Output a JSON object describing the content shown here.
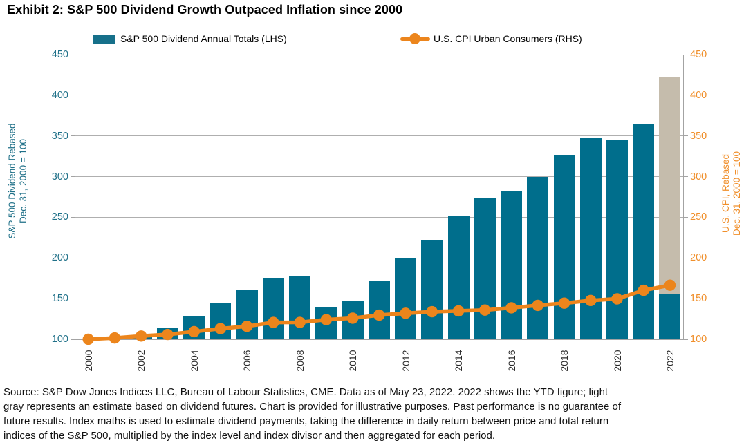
{
  "title": "Exhibit 2: S&P 500 Dividend Growth Outpaced Inflation since 2000",
  "legend": {
    "bars_label": "S&P 500 Dividend Annual Totals (LHS)",
    "line_label": "U.S. CPI Urban Consumers (RHS)"
  },
  "left_axis_title": "S&P 500 Dividend Rebased\nDec. 31, 2000 = 100",
  "right_axis_title": "U.S. CPI, Rebased\nDec. 31, 2000 = 100",
  "footer": "Source: S&P Dow Jones Indices LLC, Bureau of Labour Statistics, CME. Data as of May 23, 2022. 2022 shows the YTD figure; light\ngray represents an estimate based on dividend futures. Chart is provided for illustrative purposes. Past performance is no guarantee of\nfuture results. Index maths is used to estimate dividend payments, taking the difference in daily return between price and total return\nindices of the S&P 500, multiplied by the index level and index divisor and then aggregated for each period.",
  "colors": {
    "bar_teal": "#006E8C",
    "bar_estimate_gray": "#C5BCAC",
    "line_orange": "#EC851C",
    "left_axis_text": "#1F7088",
    "right_axis_text": "#F08F2B",
    "gridline": "#AFAFAF"
  },
  "chart_data": {
    "type": "bar+line",
    "title": "Exhibit 2: S&P 500 Dividend Growth Outpaced Inflation since 2000",
    "x_years": [
      2000,
      2001,
      2002,
      2003,
      2004,
      2005,
      2006,
      2007,
      2008,
      2009,
      2010,
      2011,
      2012,
      2013,
      2014,
      2015,
      2016,
      2017,
      2018,
      2019,
      2020,
      2021,
      2022
    ],
    "x_axis_labeled_years": [
      2000,
      2002,
      2004,
      2006,
      2008,
      2010,
      2012,
      2014,
      2016,
      2018,
      2020,
      2022
    ],
    "y_ticks": [
      100,
      150,
      200,
      250,
      300,
      350,
      400,
      450
    ],
    "left_ylim": [
      100,
      450
    ],
    "right_ylim": [
      100,
      450
    ],
    "grid": "horizontal",
    "legend_position": "top",
    "series": [
      {
        "name": "S&P 500 Dividend Annual Totals (LHS)",
        "type": "bar",
        "axis": "left",
        "values": [
          100,
          100,
          103,
          114,
          129,
          145,
          160,
          176,
          177,
          140,
          147,
          171,
          200,
          222,
          251,
          273,
          283,
          300,
          326,
          347,
          345,
          365,
          155
        ]
      },
      {
        "name": "U.S. CPI Urban Consumers (RHS)",
        "type": "line",
        "axis": "right",
        "values": [
          100,
          101.6,
          104,
          105.9,
          109.4,
          113.1,
          116,
          120.7,
          120.8,
          124.1,
          126,
          129.7,
          132,
          133.9,
          134.9,
          135.9,
          138.7,
          141.7,
          144.4,
          147.7,
          149.7,
          160.2,
          166.5
        ]
      }
    ],
    "estimate_2022": {
      "year": 2022,
      "ytd_actual": 155,
      "futures_estimate_total": 422,
      "note": "light gray segment = estimate based on dividend futures"
    }
  }
}
